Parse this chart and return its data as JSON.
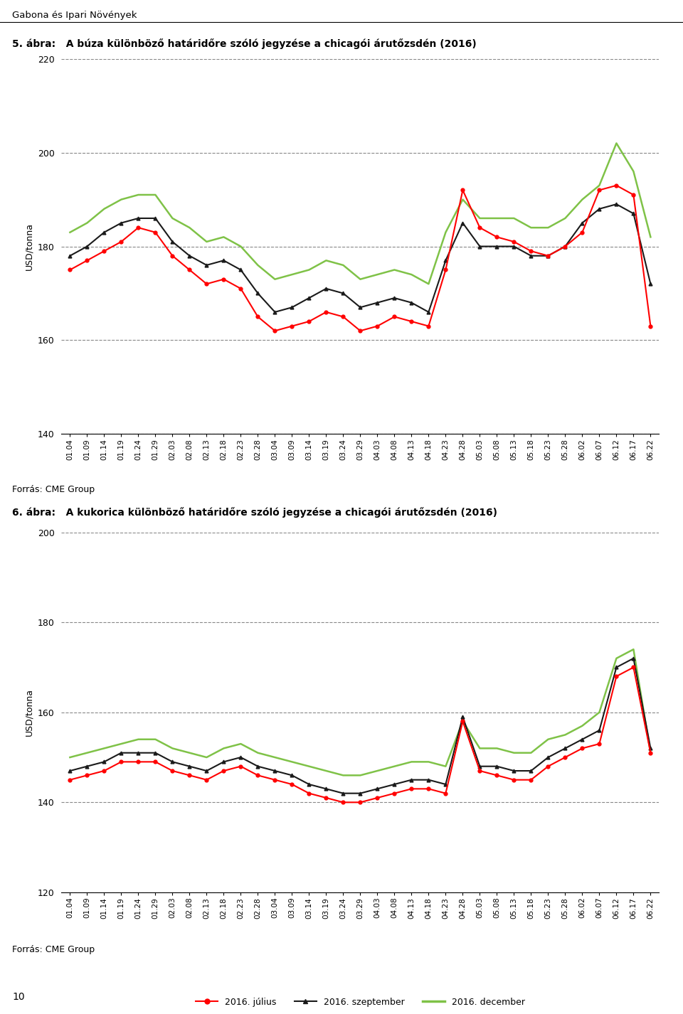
{
  "page_title": "Gabona és Ipari Növények",
  "chart1_title": "5. ábra:   A búza különböző határidőre szóló jegyzése a chicagói árutőzsdén (2016)",
  "chart2_title": "6. ábra:   A kukorica különböző határidőre szóló jegyzése a chicagói árutőzsdén (2016)",
  "ylabel": "USD/tonna",
  "source": "Forrás: CME Group",
  "page_number": "10",
  "legend_labels": [
    "2016. július",
    "2016. szeptember",
    "2016. december"
  ],
  "col_julius": "#ff0000",
  "col_szeptember": "#1a1a1a",
  "col_december": "#7fc247",
  "x_labels_wheat": [
    "01.04",
    "01.09",
    "01.14",
    "01.19",
    "01.24",
    "01.29",
    "02.03",
    "02.08",
    "02.13",
    "02.18",
    "02.23",
    "02.28",
    "03.04",
    "03.09",
    "03.14",
    "03.19",
    "03.24",
    "03.29",
    "04.03",
    "04.08",
    "04.13",
    "04.18",
    "04.23",
    "04.28",
    "05.03",
    "05.08",
    "05.13",
    "05.18",
    "05.23",
    "05.28",
    "06.02",
    "06.07",
    "06.12",
    "06.17",
    "06.22"
  ],
  "x_labels_corn": [
    "01.04",
    "01.09",
    "01.14",
    "01.19",
    "01.24",
    "01.29",
    "02.03",
    "02.08",
    "02.13",
    "02.18",
    "02.23",
    "02.28",
    "03.04",
    "03.09",
    "03.14",
    "03.19",
    "03.24",
    "03.29",
    "04.03",
    "04.08",
    "04.13",
    "04.18",
    "04.23",
    "04.28",
    "05.03",
    "05.08",
    "05.13",
    "05.18",
    "05.23",
    "05.28",
    "06.02",
    "06.07",
    "06.12",
    "06.17",
    "06.22"
  ],
  "wheat_julius": [
    175,
    177,
    179,
    181,
    184,
    183,
    178,
    175,
    172,
    173,
    171,
    165,
    162,
    163,
    164,
    166,
    165,
    162,
    163,
    165,
    164,
    163,
    175,
    192,
    184,
    182,
    181,
    179,
    178,
    180,
    183,
    192,
    193,
    191,
    163
  ],
  "wheat_szeptember": [
    178,
    180,
    183,
    185,
    186,
    186,
    181,
    178,
    176,
    177,
    175,
    170,
    166,
    167,
    169,
    171,
    170,
    167,
    168,
    169,
    168,
    166,
    177,
    185,
    180,
    180,
    180,
    178,
    178,
    180,
    185,
    188,
    189,
    187,
    172
  ],
  "wheat_december": [
    183,
    185,
    188,
    190,
    191,
    191,
    186,
    184,
    181,
    182,
    180,
    176,
    173,
    174,
    175,
    177,
    176,
    173,
    174,
    175,
    174,
    172,
    183,
    190,
    186,
    186,
    186,
    184,
    184,
    186,
    190,
    193,
    202,
    196,
    182
  ],
  "corn_julius": [
    145,
    146,
    147,
    149,
    149,
    149,
    147,
    146,
    145,
    147,
    148,
    146,
    145,
    144,
    142,
    141,
    140,
    140,
    141,
    142,
    143,
    143,
    142,
    158,
    147,
    146,
    145,
    145,
    148,
    150,
    152,
    153,
    168,
    170,
    151
  ],
  "corn_szeptember": [
    147,
    148,
    149,
    151,
    151,
    151,
    149,
    148,
    147,
    149,
    150,
    148,
    147,
    146,
    144,
    143,
    142,
    142,
    143,
    144,
    145,
    145,
    144,
    159,
    148,
    148,
    147,
    147,
    150,
    152,
    154,
    156,
    170,
    172,
    152
  ],
  "corn_december": [
    150,
    151,
    152,
    153,
    154,
    154,
    152,
    151,
    150,
    152,
    153,
    151,
    150,
    149,
    148,
    147,
    146,
    146,
    147,
    148,
    149,
    149,
    148,
    158,
    152,
    152,
    151,
    151,
    154,
    155,
    157,
    160,
    172,
    174,
    151
  ]
}
